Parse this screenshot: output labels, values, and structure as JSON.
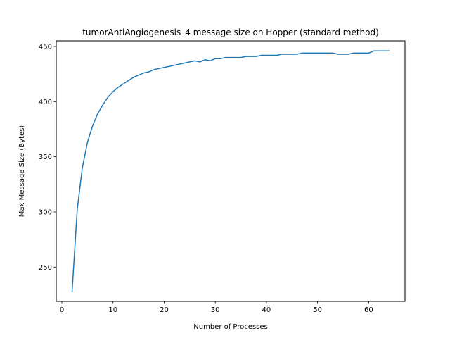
{
  "chart_data": {
    "type": "line",
    "title": "tumorAntiAngiogenesis_4 message size on Hopper (standard method)",
    "xlabel": "Number of Processes",
    "ylabel": "Max Message Size (Bytes)",
    "xlim": [
      -1.1,
      67.1
    ],
    "ylim": [
      218.9,
      455.1
    ],
    "xticks": [
      0,
      10,
      20,
      30,
      40,
      50,
      60
    ],
    "yticks": [
      250,
      300,
      350,
      400,
      450
    ],
    "grid": false,
    "line_color": "#1f77b4",
    "series": [
      {
        "x": [
          2,
          3,
          4,
          5,
          6,
          7,
          8,
          9,
          10,
          11,
          12,
          13,
          14,
          15,
          16,
          17,
          18,
          19,
          20,
          21,
          22,
          23,
          24,
          25,
          26,
          27,
          28,
          29,
          30,
          31,
          32,
          33,
          34,
          35,
          36,
          37,
          38,
          39,
          40,
          41,
          42,
          43,
          44,
          45,
          46,
          47,
          48,
          49,
          50,
          51,
          52,
          53,
          54,
          55,
          56,
          57,
          58,
          59,
          60,
          61,
          62,
          63,
          64
        ],
        "y": [
          228,
          302,
          340,
          363,
          378,
          389,
          397,
          404,
          409,
          413,
          416,
          419,
          422,
          424,
          426,
          427,
          429,
          430,
          431,
          432,
          433,
          434,
          435,
          436,
          437,
          436,
          438,
          437,
          439,
          439,
          440,
          440,
          440,
          440,
          441,
          441,
          441,
          442,
          442,
          442,
          442,
          443,
          443,
          443,
          443,
          444,
          444,
          444,
          444,
          444,
          444,
          444,
          443,
          443,
          443,
          444,
          444,
          444,
          444,
          446,
          446,
          446,
          446
        ]
      }
    ]
  }
}
